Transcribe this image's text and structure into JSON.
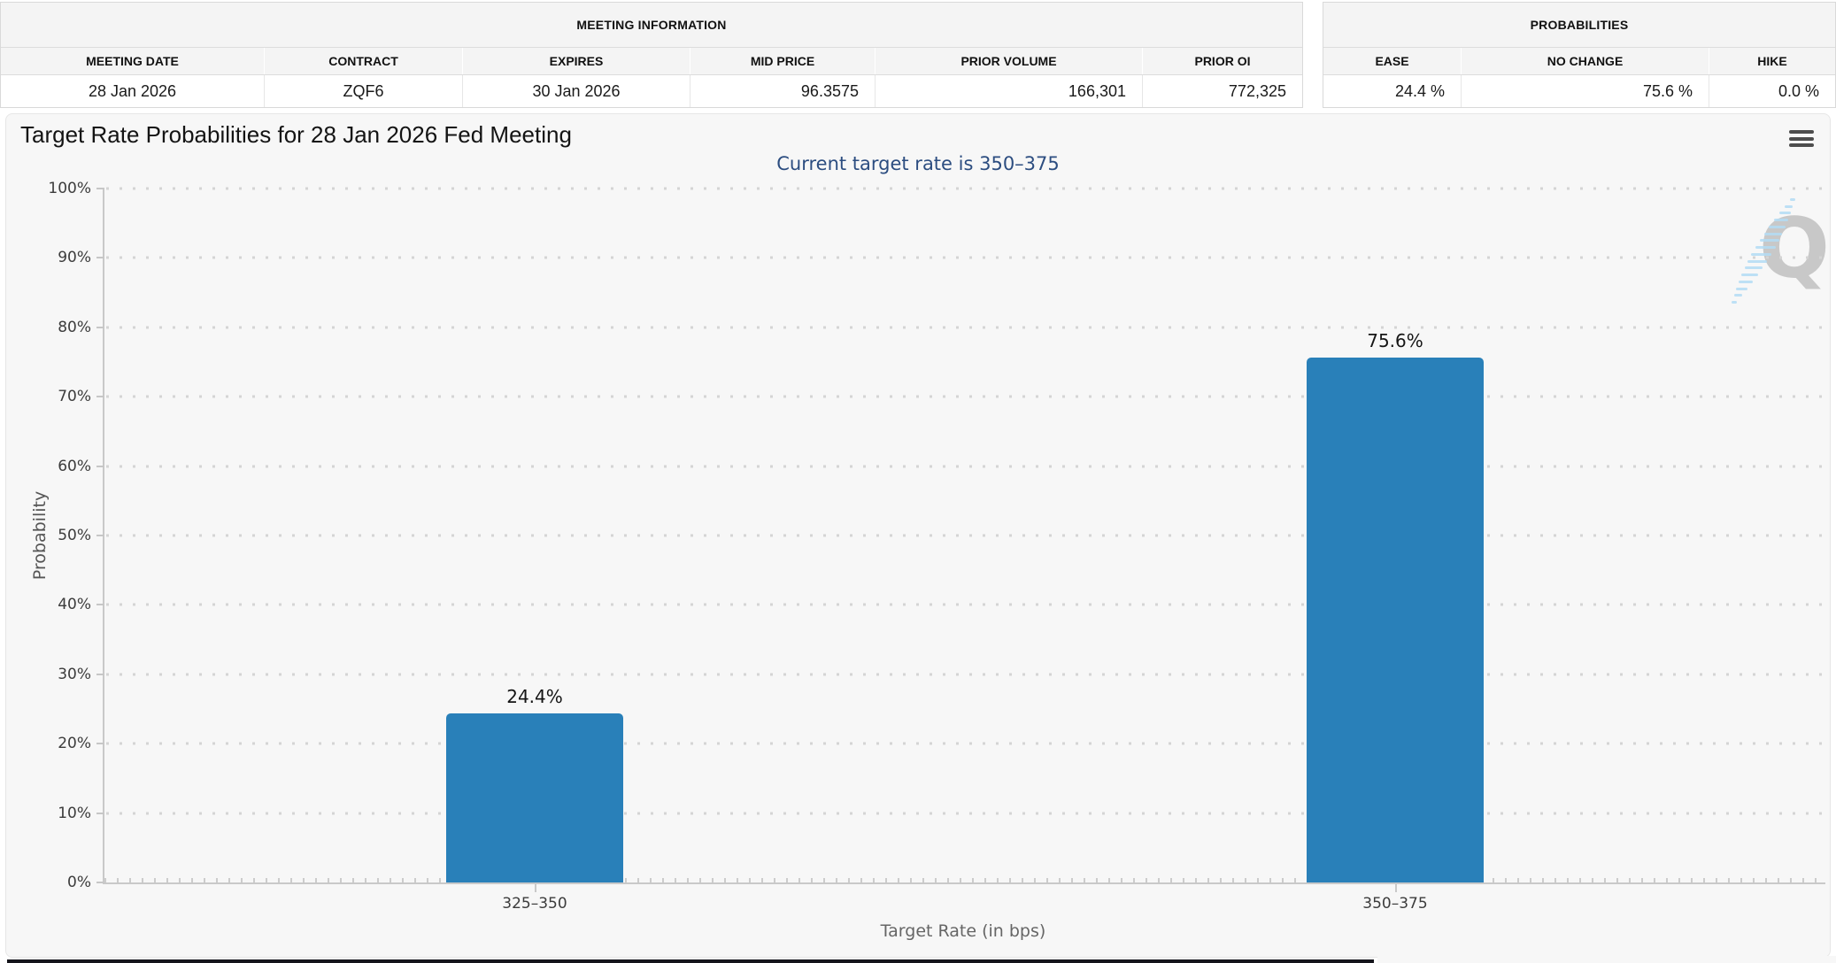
{
  "meeting_info": {
    "title": "MEETING INFORMATION",
    "columns": [
      "MEETING DATE",
      "CONTRACT",
      "EXPIRES",
      "MID PRICE",
      "PRIOR VOLUME",
      "PRIOR OI"
    ],
    "values": [
      "28 Jan 2026",
      "ZQF6",
      "30 Jan 2026",
      "96.3575",
      "166,301",
      "772,325"
    ]
  },
  "probabilities": {
    "title": "PROBABILITIES",
    "columns": [
      "EASE",
      "NO CHANGE",
      "HIKE"
    ],
    "values": [
      "24.4 %",
      "75.6 %",
      "0.0 %"
    ]
  },
  "chart": {
    "title": "Target Rate Probabilities for 28 Jan 2026 Fed Meeting",
    "subtitle": "Current target rate is 350–375",
    "menu_icon": "hamburger-menu-icon",
    "watermark_letter": "Q",
    "subtitle_color": "#2c4d80"
  },
  "chart_data": {
    "type": "bar",
    "categories": [
      "325–350",
      "350–375"
    ],
    "values": [
      24.4,
      75.6
    ],
    "bar_labels": [
      "24.4%",
      "75.6%"
    ],
    "title": "Target Rate Probabilities for 28 Jan 2026 Fed Meeting",
    "subtitle": "Current target rate is 350–375",
    "xlabel": "Target Rate (in bps)",
    "ylabel": "Probability",
    "ylim": [
      0,
      100
    ],
    "ytick_step": 10,
    "ytick_labels": [
      "0%",
      "10%",
      "20%",
      "30%",
      "40%",
      "50%",
      "60%",
      "70%",
      "80%",
      "90%",
      "100%"
    ],
    "grid": "dotted horizontal",
    "legend": "none",
    "bar_color": "#2980b9"
  }
}
